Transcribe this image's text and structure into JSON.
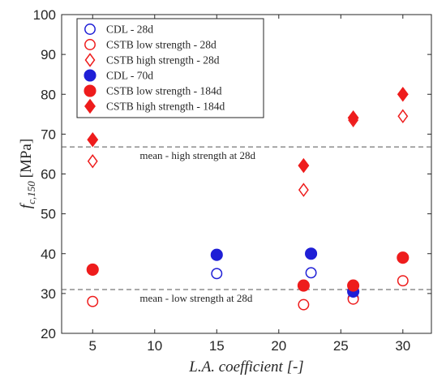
{
  "chart_data": {
    "type": "scatter",
    "xlabel": "L.A. coefficient [-]",
    "ylabel_main": "f",
    "ylabel_sub": "c,150",
    "ylabel_unit": "[MPa]",
    "xlim": [
      2.5,
      32.3
    ],
    "ylim": [
      20,
      100
    ],
    "xticks": [
      5,
      10,
      15,
      20,
      25,
      30
    ],
    "yticks": [
      20,
      30,
      40,
      50,
      60,
      70,
      80,
      90,
      100
    ],
    "grid": false,
    "legend_position": "top-left",
    "series": [
      {
        "name": "CDL - 28d",
        "marker": "circle",
        "fill": false,
        "color": "#1f1fd6",
        "points": [
          [
            15,
            35
          ],
          [
            22.6,
            35.2
          ],
          [
            26,
            28.8
          ]
        ]
      },
      {
        "name": "CSTB low strength - 28d",
        "marker": "circle",
        "fill": false,
        "color": "#ee1c1c",
        "points": [
          [
            5,
            28
          ],
          [
            22,
            27.2
          ],
          [
            26,
            28.6
          ],
          [
            30,
            33.2
          ]
        ]
      },
      {
        "name": "CSTB high strength - 28d",
        "marker": "diamond",
        "fill": false,
        "color": "#ee1c1c",
        "points": [
          [
            5,
            63.2
          ],
          [
            22,
            56
          ],
          [
            26,
            73.5
          ],
          [
            30,
            74.5
          ]
        ]
      },
      {
        "name": "CDL - 70d",
        "marker": "circle",
        "fill": true,
        "color": "#1f1fd6",
        "points": [
          [
            15,
            39.7
          ],
          [
            22.6,
            40
          ],
          [
            26,
            30.5
          ]
        ]
      },
      {
        "name": "CSTB low strength - 184d",
        "marker": "circle",
        "fill": true,
        "color": "#ee1c1c",
        "points": [
          [
            5,
            36
          ],
          [
            22,
            32
          ],
          [
            26,
            32
          ],
          [
            30,
            39
          ]
        ]
      },
      {
        "name": "CSTB high strength - 184d",
        "marker": "diamond",
        "fill": true,
        "color": "#ee1c1c",
        "points": [
          [
            5,
            68.6
          ],
          [
            22,
            62.1
          ],
          [
            26,
            74.1
          ],
          [
            30,
            80
          ]
        ]
      }
    ],
    "reference_lines": [
      {
        "label": "mean - high strength at 28d",
        "y": 66.8,
        "label_x": 8.8
      },
      {
        "label": "mean - low strength at 28d",
        "y": 31,
        "label_x": 8.8
      }
    ]
  }
}
